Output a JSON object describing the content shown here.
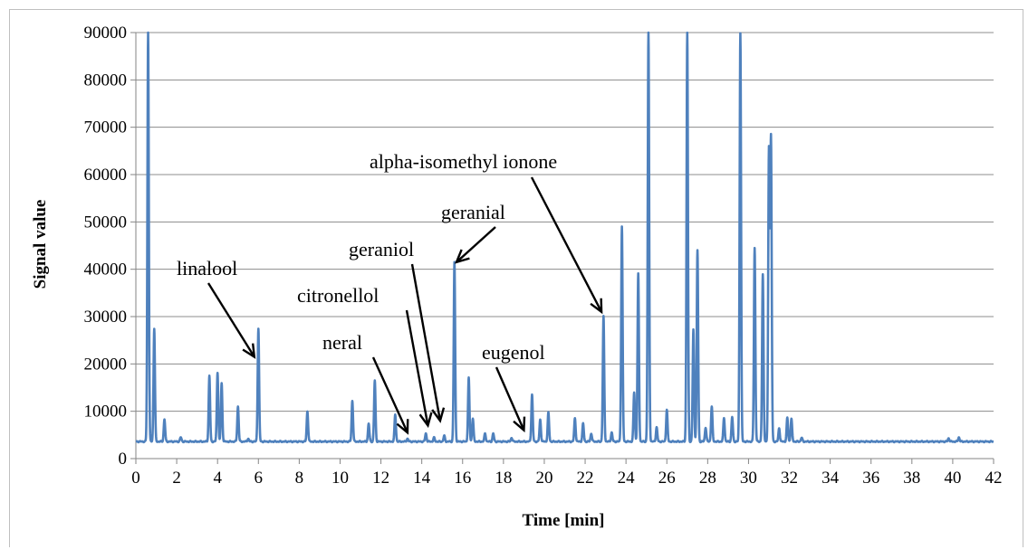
{
  "chart_data": {
    "type": "line",
    "title": "",
    "xlabel": "Time [min]",
    "ylabel": "Signal value",
    "xlim": [
      0,
      42
    ],
    "ylim": [
      0,
      90000
    ],
    "x_ticks": [
      0,
      2,
      4,
      6,
      8,
      10,
      12,
      14,
      16,
      18,
      20,
      22,
      24,
      26,
      28,
      30,
      32,
      34,
      36,
      38,
      40,
      42
    ],
    "y_ticks": [
      0,
      10000,
      20000,
      30000,
      40000,
      50000,
      60000,
      70000,
      80000,
      90000
    ],
    "grid": "horizontal",
    "legend": "none",
    "series_color": "#4f81bd",
    "baseline": 3600,
    "peaks": [
      {
        "x": 0.6,
        "y": 90000
      },
      {
        "x": 0.9,
        "y": 27500
      },
      {
        "x": 1.4,
        "y": 8300
      },
      {
        "x": 2.2,
        "y": 4500
      },
      {
        "x": 3.6,
        "y": 17500
      },
      {
        "x": 4.0,
        "y": 18200
      },
      {
        "x": 4.2,
        "y": 15900
      },
      {
        "x": 5.0,
        "y": 11000
      },
      {
        "x": 5.5,
        "y": 4200
      },
      {
        "x": 6.0,
        "y": 27500
      },
      {
        "x": 8.4,
        "y": 10000
      },
      {
        "x": 10.6,
        "y": 12200
      },
      {
        "x": 11.4,
        "y": 7400
      },
      {
        "x": 11.7,
        "y": 16500
      },
      {
        "x": 12.7,
        "y": 9300
      },
      {
        "x": 13.3,
        "y": 4200
      },
      {
        "x": 14.2,
        "y": 5300
      },
      {
        "x": 14.6,
        "y": 4400
      },
      {
        "x": 15.1,
        "y": 4800
      },
      {
        "x": 15.6,
        "y": 41500
      },
      {
        "x": 16.3,
        "y": 17000
      },
      {
        "x": 16.5,
        "y": 8500
      },
      {
        "x": 17.1,
        "y": 5300
      },
      {
        "x": 17.5,
        "y": 5300
      },
      {
        "x": 18.4,
        "y": 4400
      },
      {
        "x": 19.4,
        "y": 13500
      },
      {
        "x": 19.8,
        "y": 8200
      },
      {
        "x": 20.2,
        "y": 9700
      },
      {
        "x": 21.5,
        "y": 8500
      },
      {
        "x": 21.9,
        "y": 7400
      },
      {
        "x": 22.3,
        "y": 5300
      },
      {
        "x": 22.9,
        "y": 30000
      },
      {
        "x": 23.3,
        "y": 5500
      },
      {
        "x": 23.8,
        "y": 49000
      },
      {
        "x": 24.4,
        "y": 14000
      },
      {
        "x": 24.6,
        "y": 39000
      },
      {
        "x": 25.1,
        "y": 90000
      },
      {
        "x": 25.5,
        "y": 6600
      },
      {
        "x": 26.0,
        "y": 10300
      },
      {
        "x": 27.0,
        "y": 90000
      },
      {
        "x": 27.3,
        "y": 27200
      },
      {
        "x": 27.5,
        "y": 44000
      },
      {
        "x": 27.9,
        "y": 6600
      },
      {
        "x": 28.2,
        "y": 11000
      },
      {
        "x": 28.8,
        "y": 8600
      },
      {
        "x": 29.2,
        "y": 8800
      },
      {
        "x": 29.6,
        "y": 90000
      },
      {
        "x": 30.3,
        "y": 44500
      },
      {
        "x": 30.7,
        "y": 38800
      },
      {
        "x": 31.0,
        "y": 65000
      },
      {
        "x": 31.1,
        "y": 67500
      },
      {
        "x": 31.5,
        "y": 6400
      },
      {
        "x": 31.9,
        "y": 8600
      },
      {
        "x": 32.1,
        "y": 8400
      },
      {
        "x": 32.6,
        "y": 4400
      },
      {
        "x": 39.8,
        "y": 4300
      },
      {
        "x": 40.3,
        "y": 4500
      }
    ],
    "annotations": [
      {
        "text": "linalool",
        "target": [
          5.8,
          21500
        ]
      },
      {
        "text": "neral",
        "target": [
          13.3,
          5500
        ]
      },
      {
        "text": "citronellol",
        "target": [
          14.3,
          7000
        ]
      },
      {
        "text": "geraniol",
        "target": [
          14.9,
          8000
        ]
      },
      {
        "text": "geranial",
        "target": [
          15.7,
          41500
        ]
      },
      {
        "text": "eugenol",
        "target": [
          19.0,
          6000
        ]
      },
      {
        "text": "alpha-isomethyl ionone",
        "target": [
          22.8,
          31000
        ]
      }
    ]
  }
}
